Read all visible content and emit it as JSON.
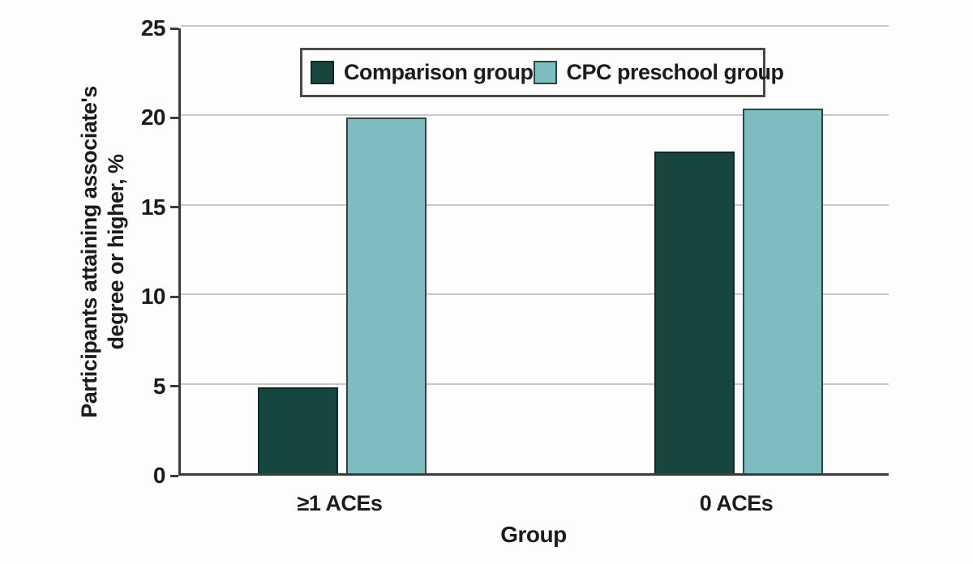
{
  "chart_data": {
    "type": "bar",
    "title": "",
    "categories": [
      "≥1 ACEs",
      "0 ACEs"
    ],
    "series": [
      {
        "name": "Comparison group",
        "color": "#17453f",
        "border_color": "#0c2b26",
        "values": [
          4.8,
          18.0
        ]
      },
      {
        "name": "CPC preschool group",
        "color": "#7dbdc0",
        "border_color": "#2c4347",
        "values": [
          19.9,
          20.4
        ]
      }
    ],
    "xlabel": "Group",
    "ylabel": "Participants attaining associate's degree or higher, %",
    "ylabel_lines": [
      "Participants attaining associate's",
      "degree or higher, %"
    ],
    "ylim": [
      0,
      25
    ],
    "yticks": [
      0,
      5,
      10,
      15,
      20,
      25
    ],
    "grid": true,
    "legend_position": "top-center"
  },
  "colors": {
    "axis": "#3b3b3b",
    "gridline": "#c9c9c9",
    "text": "#1c1c1c",
    "background": "#fdfdfd",
    "legend_border": "#4a4a4a"
  }
}
